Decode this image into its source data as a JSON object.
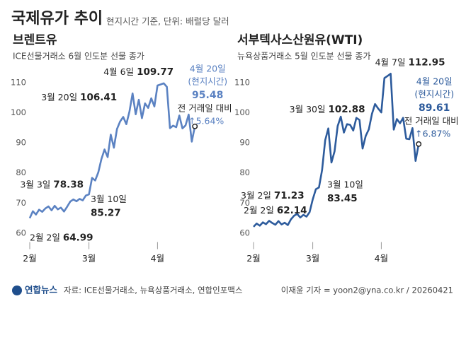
{
  "header": {
    "title": "국제유가 추이",
    "subtitle": "현지시간 기준, 단위: 배럴당 달러"
  },
  "chart_data": [
    {
      "type": "line",
      "title": "브렌트유",
      "subtitle": "ICE선물거래소 6월 인도분 선물 종가",
      "categories": [
        "2월",
        null,
        null,
        null,
        null,
        null,
        null,
        null,
        null,
        null,
        null,
        null,
        null,
        null,
        null,
        null,
        null,
        null,
        null,
        "3월",
        null,
        null,
        null,
        null,
        null,
        null,
        null,
        null,
        null,
        null,
        null,
        null,
        null,
        null,
        null,
        null,
        null,
        null,
        null,
        null,
        null,
        "4월",
        null,
        null,
        null,
        null,
        null,
        null,
        null,
        null,
        null,
        null,
        null,
        null
      ],
      "series": [
        {
          "color": "#5b82c2",
          "values": [
            64.99,
            67.3,
            66.2,
            67.8,
            67.1,
            68.2,
            68.9,
            67.6,
            69.1,
            67.9,
            68.5,
            67.2,
            68.8,
            70.5,
            71.2,
            70.6,
            71.4,
            70.9,
            72.5,
            72.9,
            78.38,
            77.5,
            80.2,
            84.6,
            87.8,
            85.27,
            92.7,
            88.4,
            94.6,
            97.1,
            98.6,
            96.2,
            100.4,
            106.41,
            99.5,
            104.3,
            98.2,
            103.1,
            101.6,
            104.8,
            102.1,
            109.03,
            109.4,
            109.77,
            108.6,
            94.9,
            95.7,
            95.2,
            99.1,
            94.8,
            95.8,
            99.4,
            90.4,
            95.48
          ],
          "labels": [
            "2월 2일",
            null,
            null,
            null,
            null,
            null,
            null,
            null,
            null,
            null,
            null,
            null,
            null,
            null,
            null,
            null,
            null,
            null,
            null,
            null,
            "3월 3일",
            null,
            null,
            null,
            null,
            "3월 10일",
            null,
            null,
            null,
            null,
            null,
            null,
            null,
            "3월 20일",
            null,
            null,
            null,
            null,
            null,
            null,
            null,
            null,
            null,
            "4월 6일",
            null,
            null,
            null,
            null,
            null,
            null,
            null,
            null,
            null,
            "4월 20일"
          ]
        }
      ],
      "last_label_note": "(현지시간)",
      "change_text": "전 거래일 대비",
      "change_label": "↑5.64%",
      "ylim": [
        58,
        115
      ],
      "yticks": [
        60,
        70,
        80,
        90,
        100,
        110
      ],
      "grid": false
    },
    {
      "type": "line",
      "title": "서부텍사스산원유(WTI)",
      "subtitle": "뉴욕상품거래소 5월 인도분 선물 종가",
      "categories": [
        "2월",
        null,
        null,
        null,
        null,
        null,
        null,
        null,
        null,
        null,
        null,
        null,
        null,
        null,
        null,
        null,
        null,
        null,
        null,
        "3월",
        null,
        null,
        null,
        null,
        null,
        null,
        null,
        null,
        null,
        null,
        null,
        null,
        null,
        null,
        null,
        null,
        null,
        null,
        null,
        null,
        null,
        "4월",
        null,
        null,
        null,
        null,
        null,
        null,
        null,
        null,
        null,
        null,
        null,
        null
      ],
      "series": [
        {
          "color": "#2d5b9c",
          "values": [
            62.14,
            63.2,
            62.5,
            63.6,
            63.0,
            64.1,
            63.4,
            62.8,
            64.0,
            62.9,
            63.5,
            62.7,
            64.6,
            65.8,
            66.4,
            65.2,
            66.1,
            65.5,
            67.0,
            71.23,
            74.6,
            75.2,
            81.0,
            90.9,
            94.8,
            83.45,
            87.2,
            95.6,
            98.7,
            93.4,
            96.2,
            96.0,
            94.1,
            98.3,
            97.6,
            88.1,
            92.3,
            94.5,
            99.6,
            102.88,
            101.4,
            100.1,
            111.5,
            112.2,
            112.95,
            94.4,
            97.9,
            96.5,
            98.3,
            91.4,
            91.2,
            94.9,
            84.0,
            89.61
          ],
          "labels": [
            "2월 2일",
            null,
            null,
            null,
            null,
            null,
            null,
            null,
            null,
            null,
            null,
            null,
            null,
            null,
            null,
            null,
            null,
            null,
            null,
            "3월 2일",
            null,
            null,
            null,
            null,
            null,
            "3월 10일",
            null,
            null,
            null,
            null,
            null,
            null,
            null,
            null,
            null,
            null,
            null,
            null,
            null,
            "3월 30일",
            null,
            null,
            null,
            null,
            "4월 7일",
            null,
            null,
            null,
            null,
            null,
            null,
            null,
            null,
            "4월 20일"
          ]
        }
      ],
      "last_label_note": "(현지시간)",
      "change_text": "전 거래일 대비",
      "change_label": "↑6.87%",
      "ylim": [
        58,
        115
      ],
      "yticks": [
        60,
        70,
        80,
        90,
        100,
        110
      ],
      "grid": false
    }
  ],
  "footer": {
    "logo": "연합뉴스",
    "source": "자료: ICE선물거래소, 뉴욕상품거래소, 연합인포맥스",
    "credit": "이재윤 기자 = yoon2@yna.co.kr / 20260421"
  }
}
